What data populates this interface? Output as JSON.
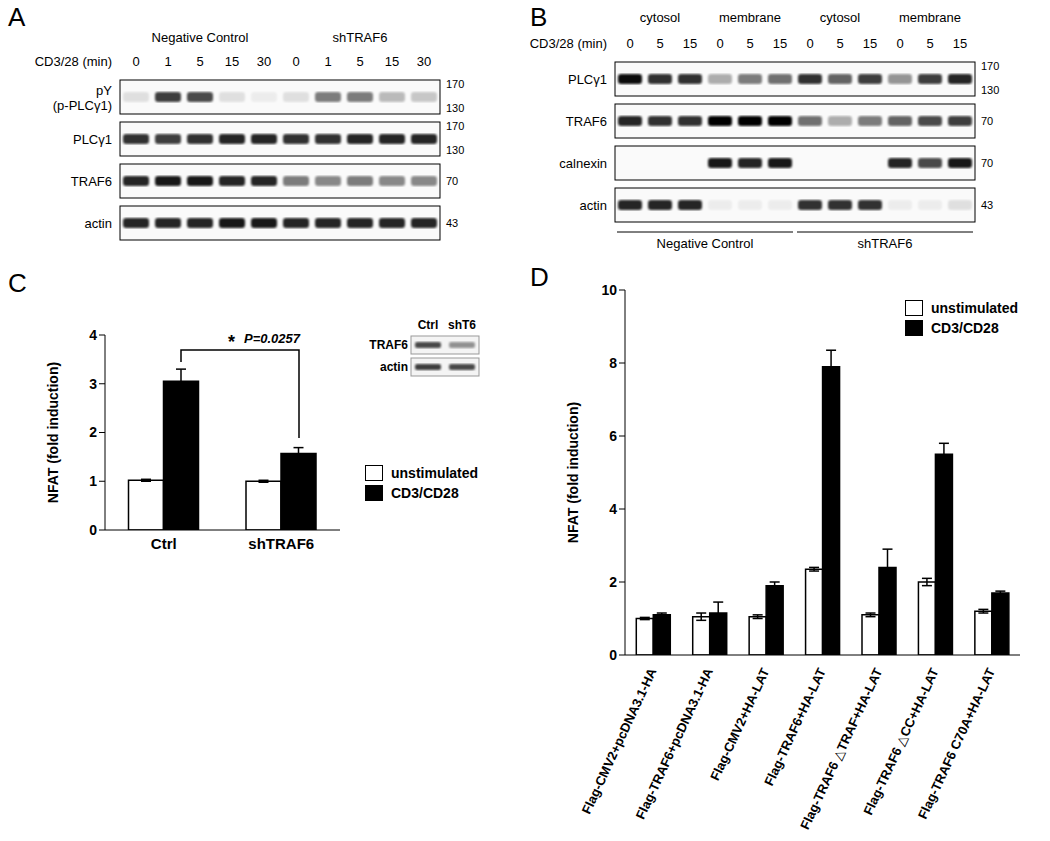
{
  "blots": [
    {
      "panel_label": "A",
      "time_label": "CD3/28 (min)",
      "groups": [
        {
          "name": "Negative Control",
          "times": [
            0,
            1,
            5,
            15,
            30
          ]
        },
        {
          "name": "shTRAF6",
          "times": [
            0,
            1,
            5,
            15,
            30
          ]
        }
      ],
      "rows": [
        {
          "label": [
            "pY",
            "(p-PLCγ1)"
          ],
          "markers": [
            170,
            130
          ],
          "intensity": [
            0.1,
            0.75,
            0.7,
            0.1,
            0.05,
            0.1,
            0.5,
            0.5,
            0.25,
            0.2
          ]
        },
        {
          "label": [
            "PLCγ1"
          ],
          "markers": [
            170,
            130
          ],
          "intensity": [
            0.8,
            0.75,
            0.8,
            0.85,
            0.85,
            0.8,
            0.8,
            0.85,
            0.85,
            0.85
          ]
        },
        {
          "label": [
            "TRAF6"
          ],
          "markers": [
            70
          ],
          "intensity": [
            0.85,
            0.9,
            0.9,
            0.85,
            0.85,
            0.5,
            0.45,
            0.5,
            0.45,
            0.45
          ]
        },
        {
          "label": [
            "actin"
          ],
          "markers": [
            43
          ],
          "intensity": [
            0.85,
            0.85,
            0.85,
            0.9,
            0.9,
            0.85,
            0.85,
            0.85,
            0.85,
            0.85
          ]
        }
      ]
    },
    {
      "panel_label": "B",
      "time_label": "CD3/28 (min)",
      "groups": [
        {
          "name": "Negative Control",
          "fractions": [
            {
              "name": "cytosol",
              "times": [
                0,
                5,
                15
              ]
            },
            {
              "name": "membrane",
              "times": [
                0,
                5,
                15
              ]
            }
          ]
        },
        {
          "name": "shTRAF6",
          "fractions": [
            {
              "name": "cytosol",
              "times": [
                0,
                5,
                15
              ]
            },
            {
              "name": "membrane",
              "times": [
                0,
                5,
                15
              ]
            }
          ]
        }
      ],
      "rows": [
        {
          "label": [
            "PLCγ1"
          ],
          "markers": [
            170,
            130
          ],
          "intensity": [
            0.95,
            0.8,
            0.8,
            0.3,
            0.5,
            0.55,
            0.8,
            0.6,
            0.75,
            0.4,
            0.75,
            0.85
          ]
        },
        {
          "label": [
            "TRAF6"
          ],
          "markers": [
            70
          ],
          "intensity": [
            0.85,
            0.8,
            0.8,
            1,
            1,
            1,
            0.55,
            0.3,
            0.5,
            0.6,
            0.7,
            0.75
          ]
        },
        {
          "label": [
            "calnexin"
          ],
          "markers": [
            70
          ],
          "intensity": [
            0,
            0,
            0,
            0.9,
            0.85,
            0.9,
            0,
            0,
            0,
            0.85,
            0.7,
            0.9
          ]
        },
        {
          "label": [
            "actin"
          ],
          "markers": [
            43
          ],
          "intensity": [
            0.85,
            0.85,
            0.85,
            0.05,
            0.05,
            0.05,
            0.8,
            0.8,
            0.8,
            0.05,
            0.05,
            0.1
          ]
        }
      ]
    }
  ],
  "chart_data": [
    {
      "type": "bar",
      "panel_label": "C",
      "ylabel": "NFAT (fold induction)",
      "categories": [
        "Ctrl",
        "shTRAF6"
      ],
      "series": [
        {
          "name": "unstimulated",
          "color": "#ffffff",
          "values": [
            1.02,
            1.0
          ],
          "errors": [
            0.02,
            0.02
          ]
        },
        {
          "name": "CD3/CD28",
          "color": "#000000",
          "values": [
            3.05,
            1.57
          ],
          "errors": [
            0.25,
            0.12
          ]
        }
      ],
      "ylim": [
        0,
        4
      ],
      "yticks": [
        0,
        1,
        2,
        3,
        4
      ],
      "legend": "right",
      "annotations": [
        "*",
        "P=0.0257"
      ],
      "inset": {
        "columns": [
          "Ctrl",
          "shT6"
        ],
        "rows": [
          {
            "label": "TRAF6",
            "intensity": [
              0.7,
              0.4
            ]
          },
          {
            "label": "actin",
            "intensity": [
              0.75,
              0.7
            ]
          }
        ]
      }
    },
    {
      "type": "bar",
      "panel_label": "D",
      "ylabel": "NFAT (fold induction)",
      "categories": [
        "Flag-CMV2+pcDNA3.1-HA",
        "Flag-TRAF6+pcDNA3.1-HA",
        "Flag-CMV2+HA-LAT",
        "Flag-TRAF6+HA-LAT",
        "Flag-TRAF6 △TRAF+HA-LAT",
        "Flag-TRAF6 △CC+HA-LAT",
        "Flag-TRAF6 C70A+HA-LAT"
      ],
      "series": [
        {
          "name": "unstimulated",
          "color": "#ffffff",
          "values": [
            1.0,
            1.05,
            1.05,
            2.35,
            1.1,
            2.0,
            1.2
          ],
          "errors": [
            0.03,
            0.1,
            0.05,
            0.05,
            0.05,
            0.1,
            0.05
          ]
        },
        {
          "name": "CD3/CD28",
          "color": "#000000",
          "values": [
            1.1,
            1.15,
            1.9,
            7.9,
            2.4,
            5.5,
            1.7
          ],
          "errors": [
            0.05,
            0.3,
            0.1,
            0.45,
            0.5,
            0.3,
            0.05
          ]
        }
      ],
      "ylim": [
        0,
        10
      ],
      "yticks": [
        0,
        2,
        4,
        6,
        8,
        10
      ],
      "legend": "upper right"
    }
  ]
}
